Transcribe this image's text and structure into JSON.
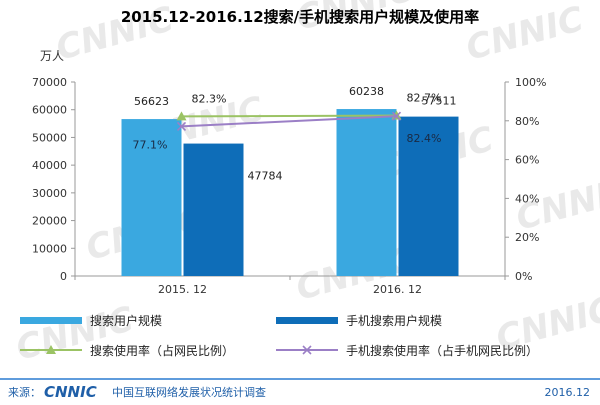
{
  "chart_data": {
    "type": "bar",
    "title": "2015.12-2016.12搜索/手机搜索用户规模及使用率",
    "y_unit": "万人",
    "categories": [
      "2015. 12",
      "2016. 12"
    ],
    "ylim": [
      0,
      70000
    ],
    "yticks": [
      "0",
      "10000",
      "20000",
      "30000",
      "40000",
      "50000",
      "60000",
      "70000"
    ],
    "y2lim": [
      0,
      100
    ],
    "y2ticks": [
      "0%",
      "20%",
      "40%",
      "60%",
      "80%",
      "100%"
    ],
    "grid": false,
    "legend_position": "bottom",
    "bar_series": [
      {
        "name": "搜索用户规模",
        "values": [
          56623,
          60238
        ],
        "labels": [
          "56623",
          "60238"
        ],
        "color": "#3aa8e0"
      },
      {
        "name": "手机搜索用户规模",
        "values": [
          47784,
          57511
        ],
        "labels": [
          "47784",
          "57511"
        ],
        "color": "#0e6db8"
      }
    ],
    "line_series": [
      {
        "name": "搜索使用率（占网民比例）",
        "values": [
          82.3,
          82.7
        ],
        "labels": [
          "82.3%",
          "82.7%"
        ],
        "color": "#9bc364",
        "marker": "triangle"
      },
      {
        "name": "手机搜索使用率（占手机网民比例）",
        "values": [
          77.1,
          82.4
        ],
        "labels": [
          "77.1%",
          "82.4%"
        ],
        "color": "#9b7fc6",
        "marker": "x"
      }
    ]
  },
  "footer": {
    "source_label": "来源：",
    "logo_text": "CNNIC",
    "org": "中国互联网络发展状况统计调查",
    "date": "2016.12"
  },
  "colors": {
    "footer_blue": "#1f5fa8",
    "footer_line": "#2a7bd1"
  }
}
